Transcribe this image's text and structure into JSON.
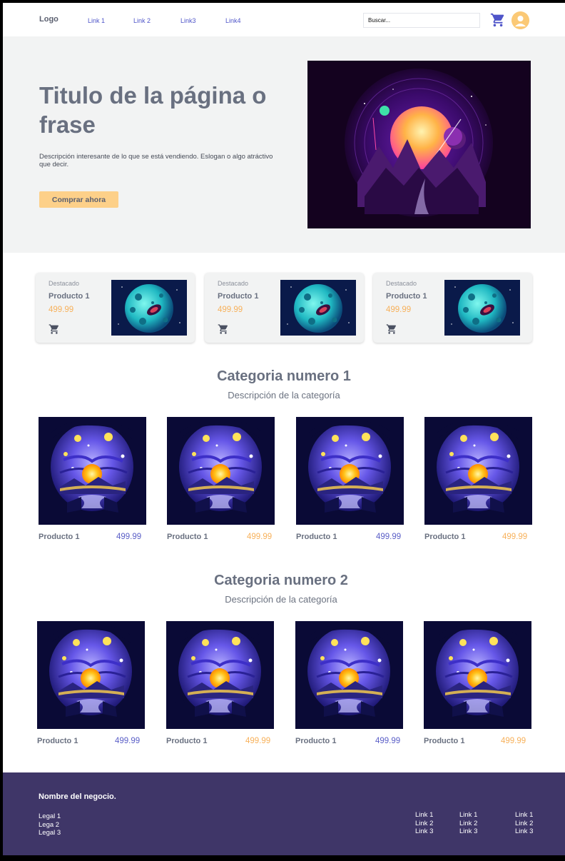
{
  "nav": {
    "logo": "Logo",
    "links": [
      "Link 1",
      "Link 2",
      "Link3",
      "Link4"
    ],
    "search_placeholder": "Buscar..."
  },
  "hero": {
    "title": "Titulo de la página o frase",
    "description": "Descripción interesante de lo que se está vendiendo. Eslogan o algo atráctivo que decir.",
    "button_label": "Comprar ahora"
  },
  "featured": [
    {
      "tag": "Destacado",
      "name": "Producto 1",
      "price": "499.99"
    },
    {
      "tag": "Destacado",
      "name": "Producto 1",
      "price": "499.99"
    },
    {
      "tag": "Destacado",
      "name": "Producto 1",
      "price": "499.99"
    }
  ],
  "categories": [
    {
      "title": "Categoria numero 1",
      "description": "Descripción de la categoría",
      "products": [
        {
          "name": "Producto 1",
          "price": "499.99",
          "price_color": "#5b5fc7"
        },
        {
          "name": "Producto 1",
          "price": "499.99",
          "price_color": "#f7b15b"
        },
        {
          "name": "Producto 1",
          "price": "499.99",
          "price_color": "#5b5fc7"
        },
        {
          "name": "Producto 1",
          "price": "499.99",
          "price_color": "#f7b15b"
        }
      ]
    },
    {
      "title": "Categoria numero 2",
      "description": "Descripción de la categoría",
      "products": [
        {
          "name": "Producto 1",
          "price": "499.99",
          "price_color": "#5b5fc7"
        },
        {
          "name": "Producto 1",
          "price": "499.99",
          "price_color": "#f7b15b"
        },
        {
          "name": "Producto 1",
          "price": "499.99",
          "price_color": "#5b5fc7"
        },
        {
          "name": "Producto 1",
          "price": "499.99",
          "price_color": "#f7b15b"
        }
      ]
    }
  ],
  "footer": {
    "business_name": "Nombre del negocio.",
    "legal": [
      "Legal 1",
      "Lega 2",
      "Legal 3"
    ],
    "link_columns": [
      [
        "Link 1",
        "Link 2",
        "Link 3"
      ],
      [
        "Link 1",
        "Link 2",
        "Link 3"
      ],
      [
        "Link 1",
        "Link 2",
        "Link 3"
      ]
    ]
  },
  "colors": {
    "accent": "#4f55c9",
    "cta": "#fdd089",
    "price_orange": "#f7b15b",
    "footer_bg": "#3f3668",
    "hero_bg": "#f2f3f3"
  },
  "icons": [
    "cart-icon",
    "user-avatar-icon"
  ]
}
